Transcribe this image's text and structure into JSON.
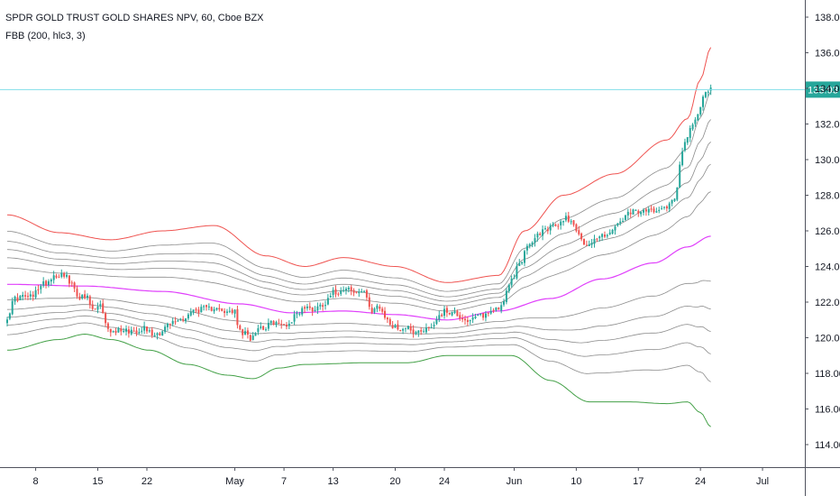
{
  "chart_data": {
    "type": "candlestick",
    "symbol_line": "SPDR GOLD TRUST GOLD SHARES NPV, 60, Cboe BZX",
    "indicator_line": "FBB (200, hlc3, 3)",
    "price_axis": {
      "ticks": [
        "138.00",
        "136.00",
        "134.00",
        "132.00",
        "130.00",
        "128.00",
        "126.00",
        "124.00",
        "122.00",
        "120.00",
        "118.00",
        "116.00",
        "114.00"
      ],
      "ylim": [
        113.2,
        138.9
      ]
    },
    "time_axis": {
      "ticks": [
        {
          "label": "8",
          "i": 11
        },
        {
          "label": "15",
          "i": 35
        },
        {
          "label": "22",
          "i": 54
        },
        {
          "label": "May",
          "i": 88
        },
        {
          "label": "7",
          "i": 107
        },
        {
          "label": "13",
          "i": 126
        },
        {
          "label": "20",
          "i": 150
        },
        {
          "label": "24",
          "i": 169
        },
        {
          "label": "Jun",
          "i": 196
        },
        {
          "label": "10",
          "i": 220
        },
        {
          "label": "17",
          "i": 244
        },
        {
          "label": "24",
          "i": 268
        },
        {
          "label": "Jul",
          "i": 292
        }
      ],
      "bars_total": 310
    },
    "last_price": {
      "value": 133.93,
      "label": "133.93"
    },
    "colors": {
      "up": "#26a69a",
      "down": "#ef5350",
      "basis": "#e040fb",
      "upper_band": "#ef5350",
      "lower_band": "#43a047",
      "inner_bands": "#8c8c8c",
      "last_price_line": "#80deea",
      "last_price_label_bg": "#26a69a"
    },
    "candle_close_anchors": [
      [
        0,
        121.2
      ],
      [
        3,
        122.2
      ],
      [
        6,
        122.3
      ],
      [
        10,
        122.3
      ],
      [
        12,
        122.8
      ],
      [
        15,
        123.1
      ],
      [
        18,
        123.5
      ],
      [
        22,
        123.6
      ],
      [
        25,
        122.9
      ],
      [
        28,
        122.3
      ],
      [
        31,
        122.2
      ],
      [
        33,
        121.5
      ],
      [
        36,
        121.8
      ],
      [
        38,
        120.7
      ],
      [
        41,
        120.3
      ],
      [
        44,
        120.5
      ],
      [
        47,
        120.4
      ],
      [
        50,
        120.4
      ],
      [
        53,
        120.6
      ],
      [
        56,
        120.2
      ],
      [
        59,
        120.3
      ],
      [
        62,
        120.7
      ],
      [
        65,
        120.9
      ],
      [
        68,
        121.1
      ],
      [
        72,
        121.5
      ],
      [
        75,
        121.6
      ],
      [
        78,
        121.6
      ],
      [
        81,
        121.8
      ],
      [
        84,
        121.3
      ],
      [
        86,
        121.5
      ],
      [
        88,
        121.4
      ],
      [
        90,
        120.3
      ],
      [
        92,
        120.2
      ],
      [
        94,
        120.0
      ],
      [
        97,
        120.6
      ],
      [
        100,
        120.6
      ],
      [
        103,
        120.9
      ],
      [
        106,
        120.7
      ],
      [
        109,
        120.8
      ],
      [
        112,
        121.4
      ],
      [
        115,
        121.7
      ],
      [
        118,
        121.6
      ],
      [
        121,
        121.8
      ],
      [
        123,
        122.0
      ],
      [
        125,
        122.5
      ],
      [
        128,
        122.6
      ],
      [
        131,
        122.9
      ],
      [
        134,
        122.5
      ],
      [
        137,
        122.6
      ],
      [
        139,
        122.3
      ],
      [
        141,
        121.5
      ],
      [
        143,
        121.8
      ],
      [
        145,
        121.3
      ],
      [
        147,
        121.0
      ],
      [
        149,
        120.6
      ],
      [
        152,
        120.5
      ],
      [
        155,
        120.6
      ],
      [
        158,
        120.3
      ],
      [
        161,
        120.5
      ],
      [
        164,
        120.6
      ],
      [
        167,
        121.3
      ],
      [
        170,
        121.5
      ],
      [
        173,
        121.4
      ],
      [
        176,
        121.1
      ],
      [
        179,
        120.9
      ],
      [
        182,
        121.2
      ],
      [
        185,
        121.3
      ],
      [
        188,
        121.6
      ],
      [
        191,
        121.8
      ],
      [
        193,
        122.5
      ],
      [
        195,
        123.2
      ],
      [
        198,
        124.2
      ],
      [
        201,
        125.0
      ],
      [
        204,
        125.6
      ],
      [
        207,
        126.0
      ],
      [
        210,
        126.2
      ],
      [
        213,
        126.3
      ],
      [
        216,
        126.8
      ],
      [
        219,
        126.4
      ],
      [
        222,
        125.4
      ],
      [
        225,
        125.3
      ],
      [
        228,
        125.6
      ],
      [
        231,
        125.8
      ],
      [
        234,
        126.0
      ],
      [
        237,
        126.5
      ],
      [
        240,
        126.9
      ],
      [
        243,
        127.1
      ],
      [
        246,
        127.0
      ],
      [
        249,
        127.2
      ],
      [
        252,
        127.3
      ],
      [
        255,
        127.4
      ],
      [
        258,
        127.8
      ],
      [
        261,
        130.6
      ],
      [
        263,
        131.3
      ],
      [
        265,
        131.9
      ],
      [
        267,
        132.5
      ],
      [
        269,
        133.5
      ],
      [
        270,
        133.9
      ],
      [
        272,
        134.0
      ]
    ],
    "fbb": {
      "ratios": [
        0.236,
        0.382,
        0.5,
        0.618,
        0.764,
        1.0
      ],
      "basis_anchors": [
        [
          0,
          123.0
        ],
        [
          30,
          122.9
        ],
        [
          60,
          122.6
        ],
        [
          90,
          121.9
        ],
        [
          110,
          121.4
        ],
        [
          130,
          121.5
        ],
        [
          150,
          121.3
        ],
        [
          170,
          121.0
        ],
        [
          190,
          121.5
        ],
        [
          210,
          122.2
        ],
        [
          230,
          123.3
        ],
        [
          250,
          124.2
        ],
        [
          263,
          125.1
        ],
        [
          272,
          125.7
        ]
      ],
      "upper_anchors": [
        [
          0,
          126.9
        ],
        [
          20,
          125.9
        ],
        [
          40,
          125.5
        ],
        [
          60,
          126.0
        ],
        [
          80,
          126.3
        ],
        [
          100,
          124.6
        ],
        [
          115,
          124.0
        ],
        [
          130,
          124.5
        ],
        [
          150,
          124.0
        ],
        [
          170,
          123.1
        ],
        [
          190,
          123.5
        ],
        [
          200,
          126.0
        ],
        [
          215,
          128.0
        ],
        [
          235,
          129.2
        ],
        [
          255,
          131.1
        ],
        [
          263,
          132.3
        ],
        [
          268,
          134.5
        ],
        [
          272,
          136.3
        ]
      ],
      "lower_anchors": [
        [
          0,
          119.3
        ],
        [
          20,
          119.9
        ],
        [
          30,
          120.2
        ],
        [
          40,
          119.9
        ],
        [
          55,
          119.3
        ],
        [
          70,
          118.5
        ],
        [
          85,
          117.9
        ],
        [
          95,
          117.7
        ],
        [
          105,
          118.3
        ],
        [
          115,
          118.5
        ],
        [
          140,
          118.6
        ],
        [
          155,
          118.6
        ],
        [
          170,
          119.0
        ],
        [
          185,
          119.0
        ],
        [
          195,
          119.0
        ],
        [
          210,
          117.6
        ],
        [
          225,
          116.4
        ],
        [
          240,
          116.4
        ],
        [
          255,
          116.3
        ],
        [
          263,
          116.4
        ],
        [
          268,
          115.8
        ],
        [
          272,
          115.0
        ]
      ]
    }
  }
}
